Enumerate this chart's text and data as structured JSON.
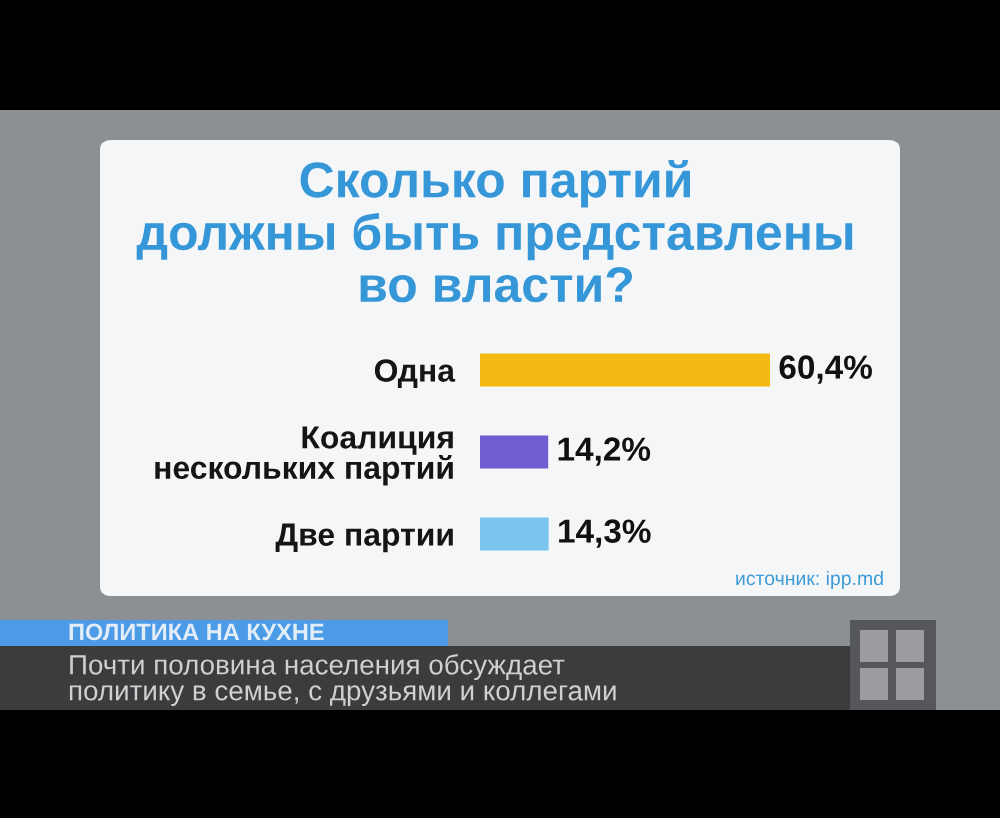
{
  "chart_data": {
    "type": "bar",
    "orientation": "horizontal",
    "title": "Сколько партий\nдолжны быть представлены\nво власти?",
    "categories": [
      "Одна",
      "Коалиция\nнескольких партий",
      "Две партии"
    ],
    "values": [
      60.4,
      14.2,
      14.3
    ],
    "colors": [
      "#f5b914",
      "#6f5fd2",
      "#79c5ef"
    ],
    "value_labels": [
      "60,4%",
      "14,2%",
      "14,3%"
    ],
    "tick_labels": "y",
    "annotations": [
      "источник: ipp.md",
      "ПОЛИТИКА НА КУХНЕ",
      "Почти половина населения обсуждает\nполитику в семье, с друзьями и коллегами"
    ]
  }
}
